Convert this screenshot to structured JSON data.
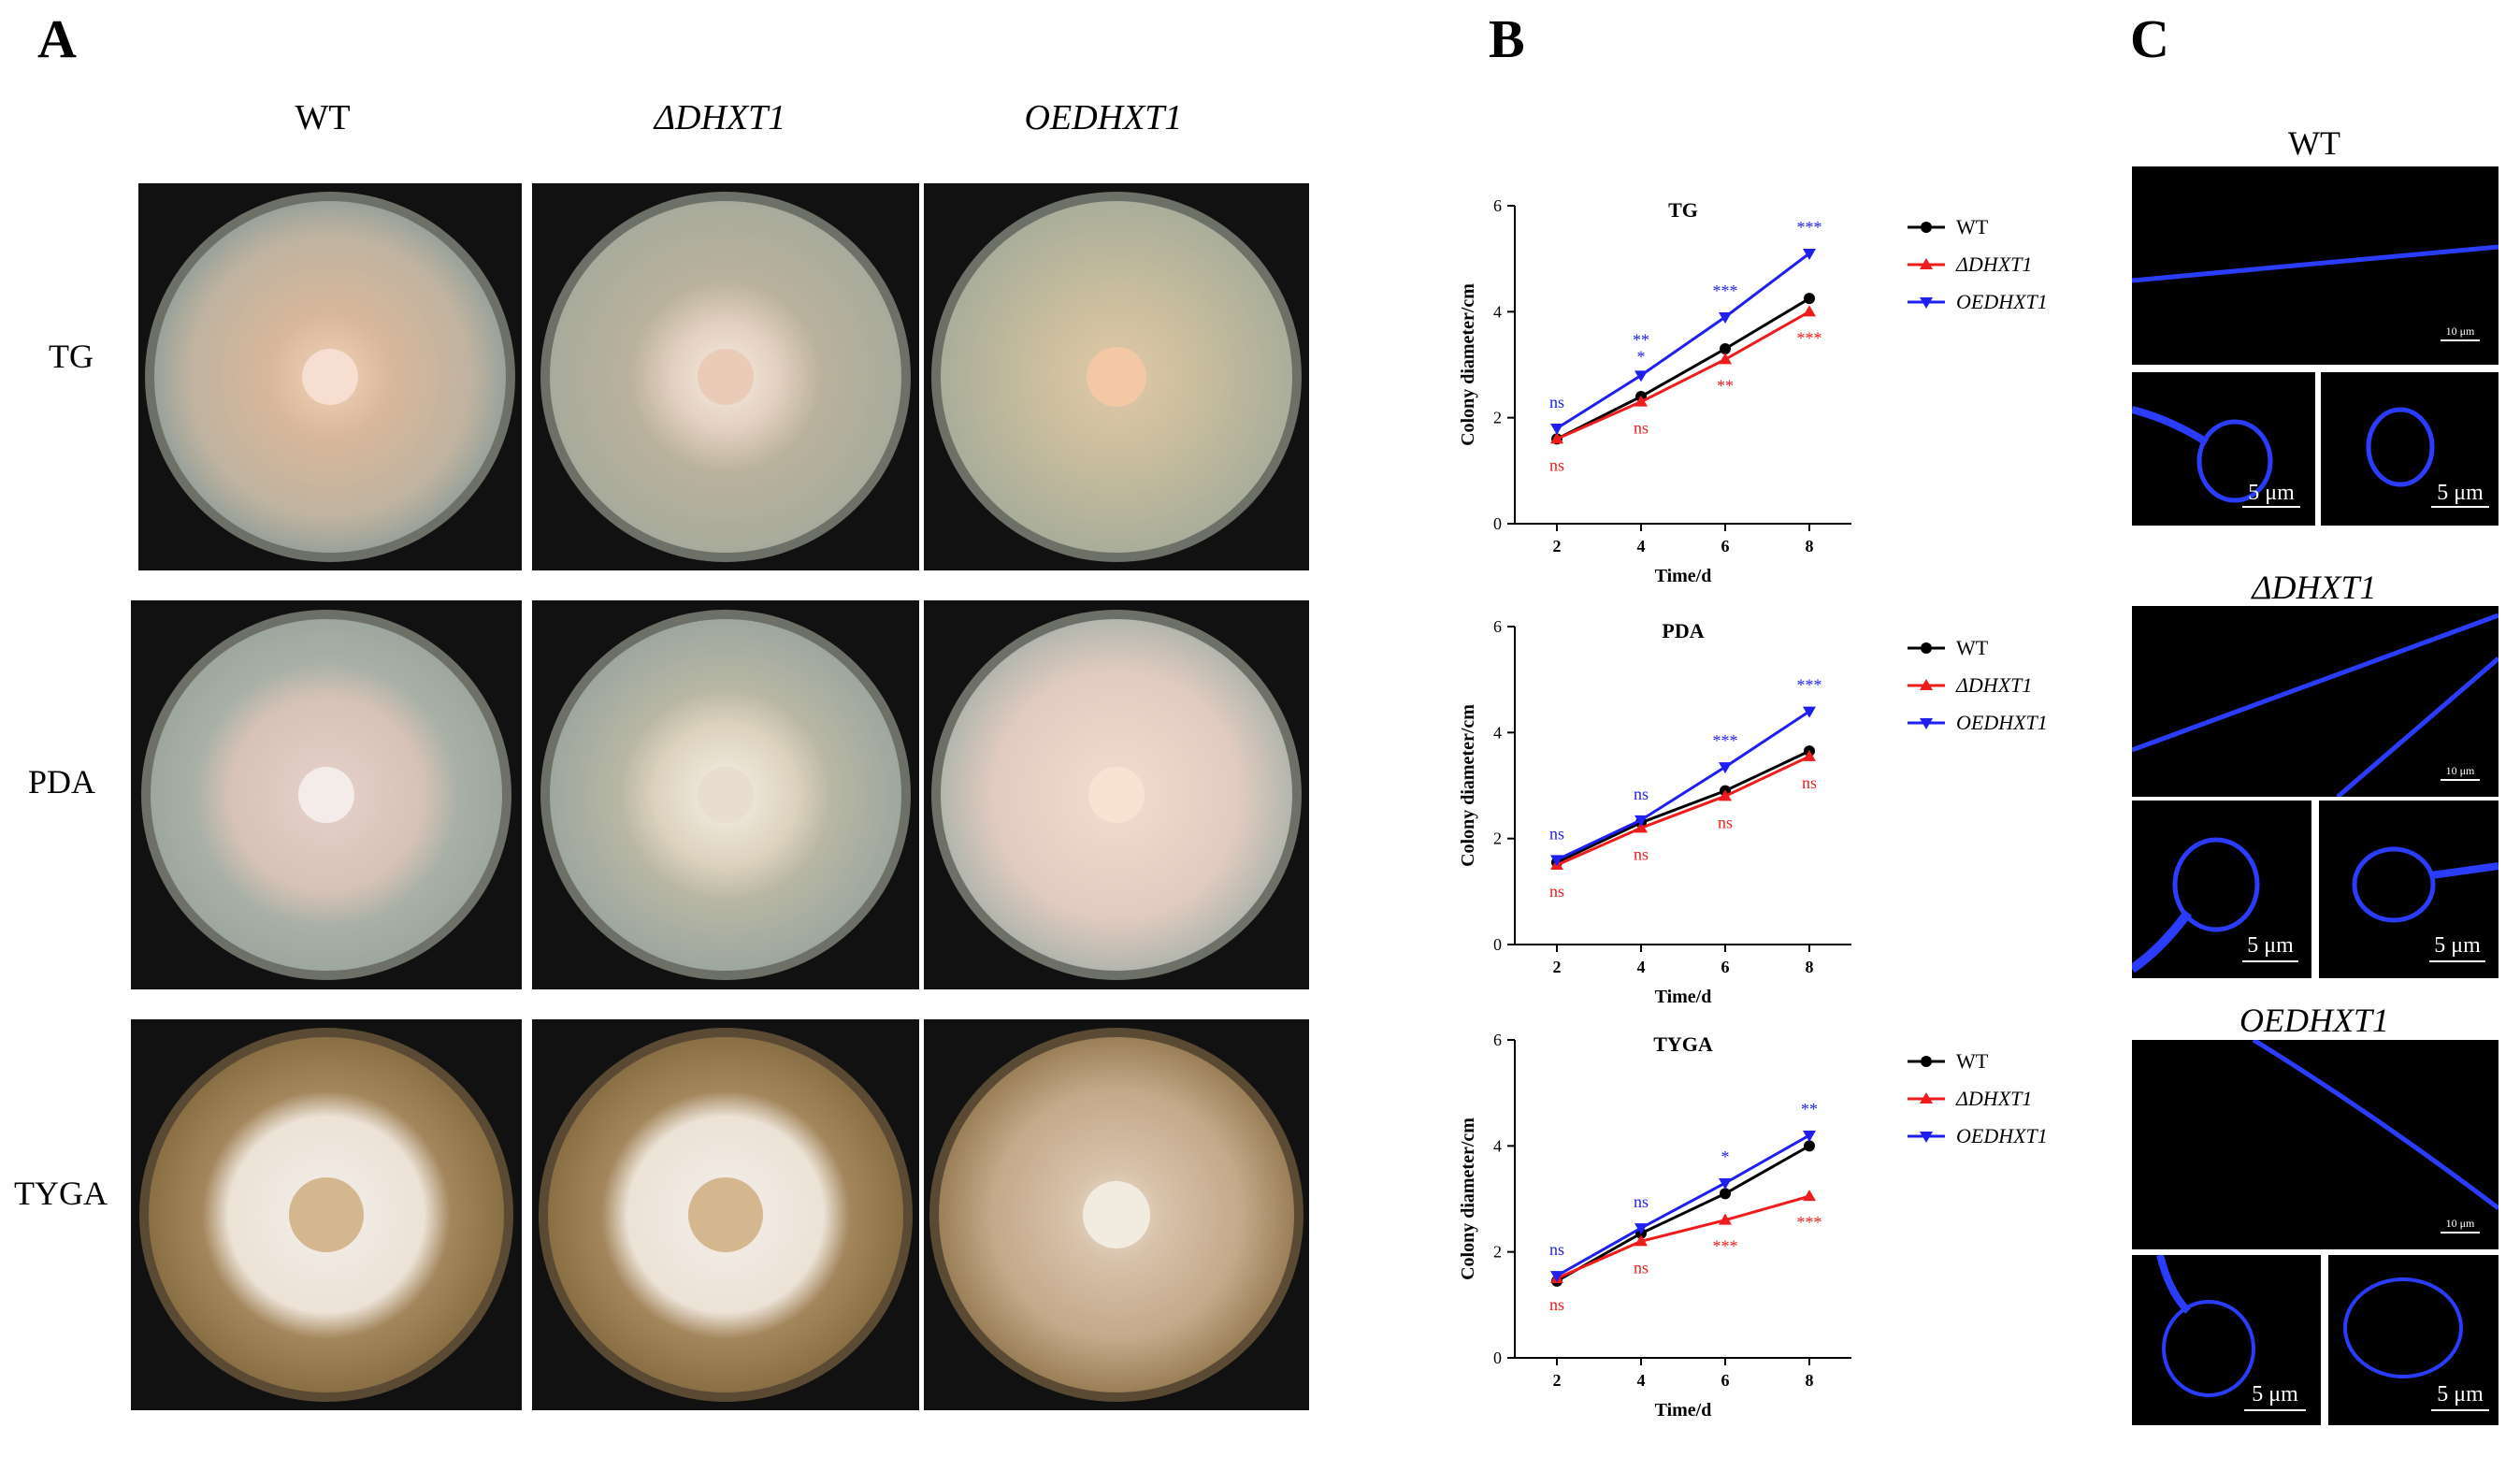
{
  "panels": {
    "a": "A",
    "b": "B",
    "c": "C"
  },
  "panel_a": {
    "columns": [
      "WT",
      "ΔDHXT1",
      "OEDHXT1"
    ],
    "rows": [
      "TG",
      "PDA",
      "TYGA"
    ]
  },
  "panel_c": {
    "titles": [
      "WT",
      "ΔDHXT1",
      "OEDHXT1"
    ],
    "scale_large": "10 μm",
    "scale_small": "5 μm"
  },
  "colors": {
    "wt": "#000000",
    "ko": "#ee1c1c",
    "oe": "#1f1ff0"
  },
  "chart_data": [
    {
      "type": "line",
      "title": "TG",
      "xlabel": "Time/d",
      "ylabel": "Colony diameter/cm",
      "x": [
        2,
        4,
        6,
        8
      ],
      "ylim": [
        0,
        6
      ],
      "yticks": [
        0,
        2,
        4,
        6
      ],
      "series": [
        {
          "name": "WT",
          "values": [
            1.6,
            2.4,
            3.3,
            4.25
          ]
        },
        {
          "name": "ΔDHXT1",
          "values": [
            1.6,
            2.3,
            3.1,
            4.0
          ]
        },
        {
          "name": "OEDHXT1",
          "values": [
            1.8,
            2.8,
            3.9,
            5.1
          ]
        }
      ],
      "annotations_oe": [
        "ns",
        "**\n*",
        "***",
        "***"
      ],
      "annotations_ko": [
        "ns",
        "ns",
        "**",
        "***"
      ]
    },
    {
      "type": "line",
      "title": "PDA",
      "xlabel": "Time/d",
      "ylabel": "Colony diameter/cm",
      "x": [
        2,
        4,
        6,
        8
      ],
      "ylim": [
        0,
        6
      ],
      "yticks": [
        0,
        2,
        4,
        6
      ],
      "series": [
        {
          "name": "WT",
          "values": [
            1.55,
            2.3,
            2.9,
            3.65
          ]
        },
        {
          "name": "ΔDHXT1",
          "values": [
            1.5,
            2.2,
            2.8,
            3.55
          ]
        },
        {
          "name": "OEDHXT1",
          "values": [
            1.6,
            2.35,
            3.35,
            4.4
          ]
        }
      ],
      "annotations_oe": [
        "ns",
        "ns",
        "***",
        "***"
      ],
      "annotations_ko": [
        "ns",
        "ns",
        "ns",
        "ns"
      ]
    },
    {
      "type": "line",
      "title": "TYGA",
      "xlabel": "Time/d",
      "ylabel": "Colony diameter/cm",
      "x": [
        2,
        4,
        6,
        8
      ],
      "ylim": [
        0,
        6
      ],
      "yticks": [
        0,
        2,
        4,
        6
      ],
      "series": [
        {
          "name": "WT",
          "values": [
            1.45,
            2.35,
            3.1,
            4.0
          ]
        },
        {
          "name": "ΔDHXT1",
          "values": [
            1.5,
            2.2,
            2.6,
            3.05
          ]
        },
        {
          "name": "OEDHXT1",
          "values": [
            1.55,
            2.45,
            3.3,
            4.2
          ]
        }
      ],
      "annotations_oe": [
        "ns",
        "ns",
        "*",
        "**"
      ],
      "annotations_ko": [
        "ns",
        "ns",
        "***",
        "***"
      ]
    }
  ]
}
